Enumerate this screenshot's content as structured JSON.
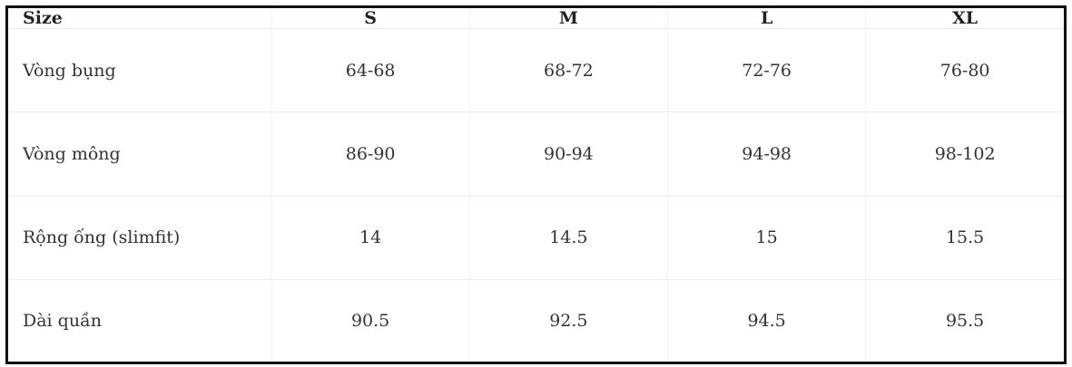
{
  "table": {
    "header": [
      "Size",
      "S",
      "M",
      "L",
      "XL"
    ],
    "rows": [
      [
        "Vòng bụng",
        "64-68",
        "68-72",
        "72-76",
        "76-80"
      ],
      [
        "Vòng mông",
        "86-90",
        "90-94",
        "94-98",
        "98-102"
      ],
      [
        "Rộng ống (slimfit)",
        "14",
        "14.5",
        "15",
        "15.5"
      ],
      [
        "Dài quần",
        "90.5",
        "92.5",
        "94.5",
        "95.5"
      ]
    ]
  }
}
